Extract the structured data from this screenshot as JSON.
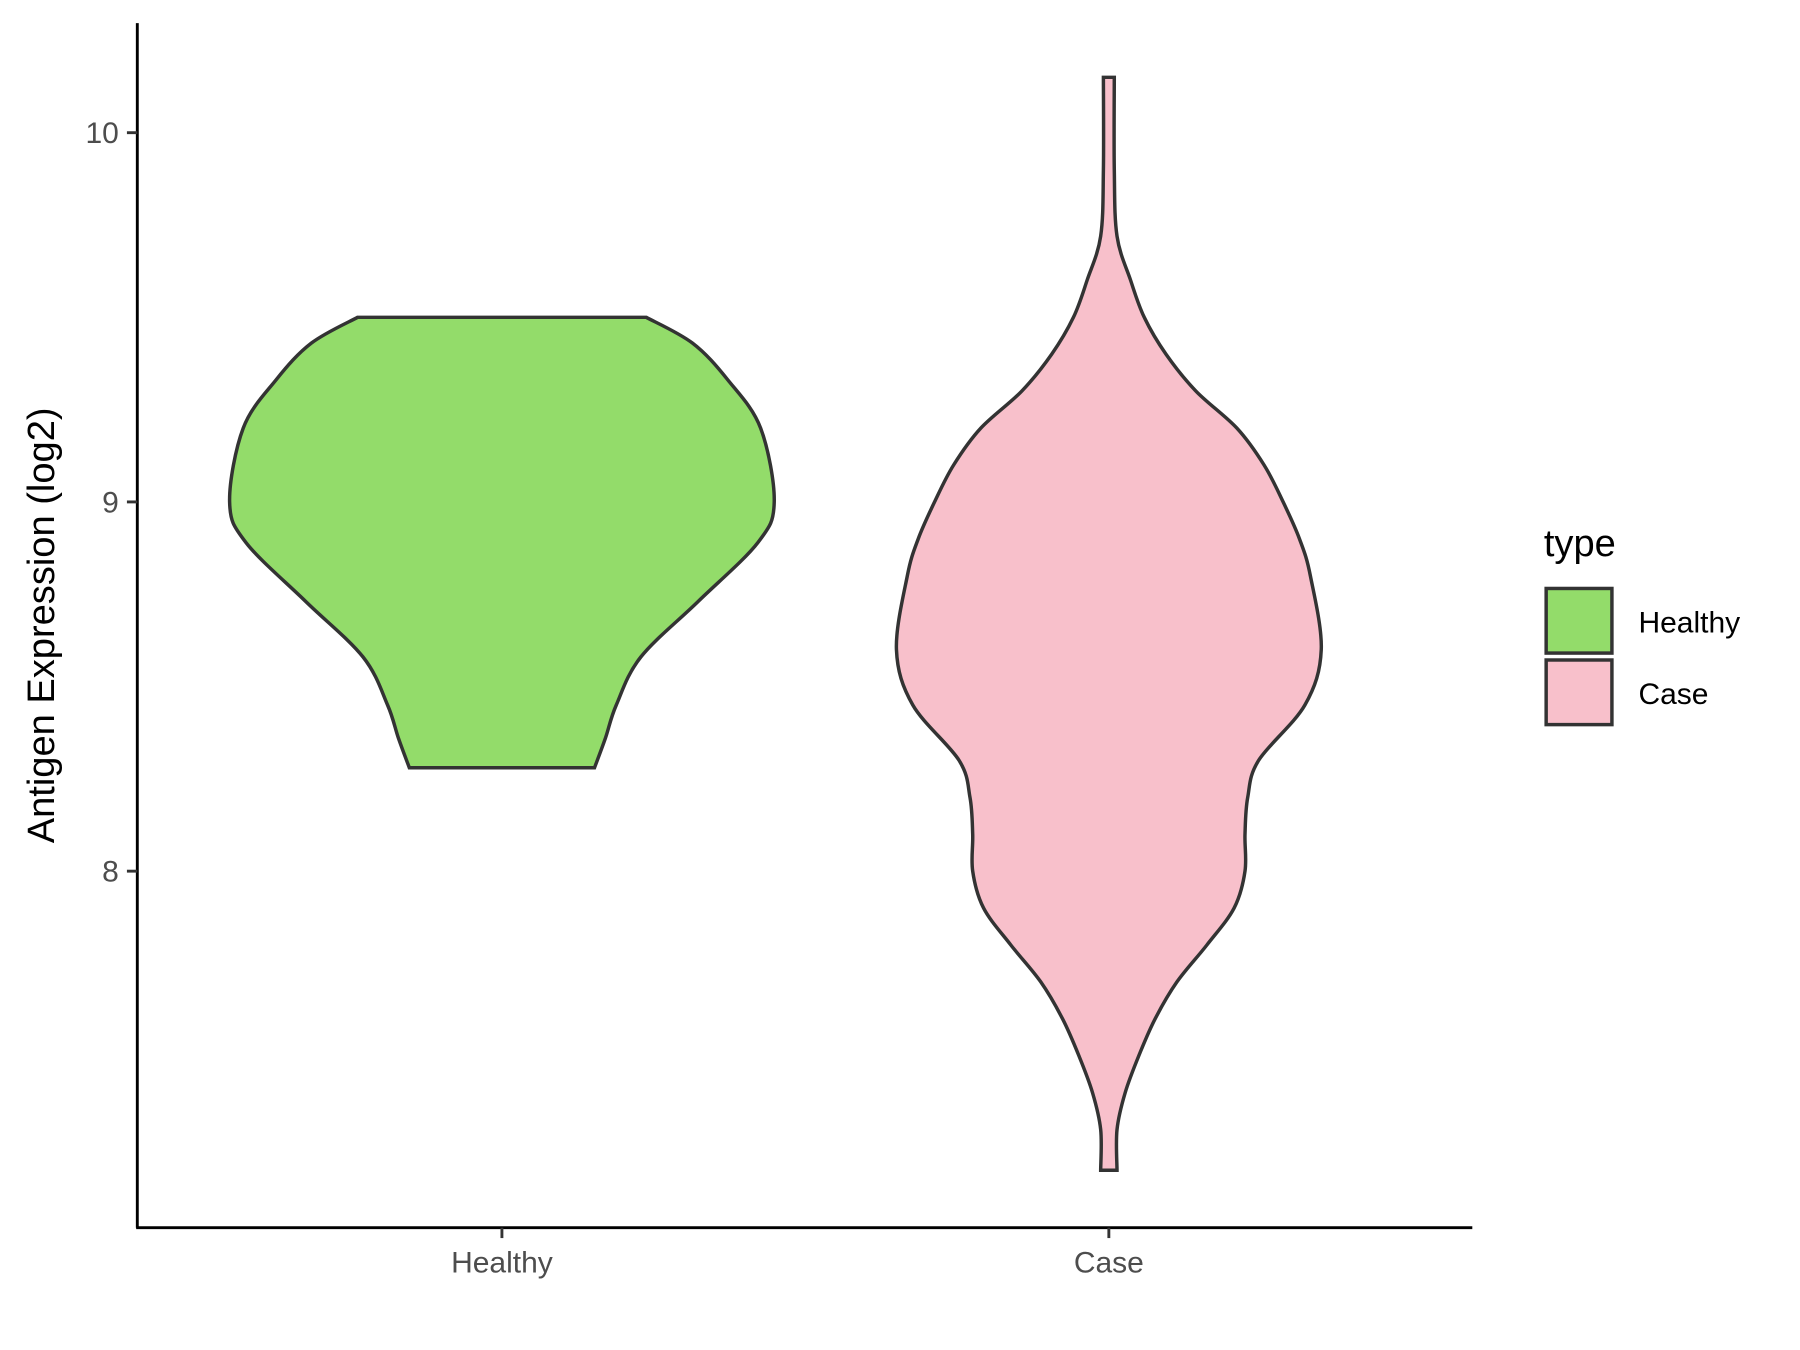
{
  "chart_data": {
    "type": "violin",
    "title": "",
    "xlabel": "",
    "ylabel": "Antigen Expression (log2)",
    "ylim": [
      7.05,
      10.29
    ],
    "yticks": [
      8,
      9,
      10
    ],
    "ytick_labels": [
      "8",
      "9",
      "10"
    ],
    "categories": [
      "Healthy",
      "Case"
    ],
    "grid": false,
    "legend": {
      "title": "type",
      "placement": "right",
      "entries": [
        "Healthy",
        "Case"
      ]
    },
    "series": [
      {
        "name": "Healthy",
        "color": "#93DC6A",
        "range": [
          8.28,
          9.5
        ],
        "density_profile": [
          [
            8.28,
            0.34
          ],
          [
            8.36,
            0.38
          ],
          [
            8.45,
            0.42
          ],
          [
            8.58,
            0.51
          ],
          [
            8.73,
            0.72
          ],
          [
            8.89,
            0.94
          ],
          [
            9.0,
            1.0
          ],
          [
            9.2,
            0.95
          ],
          [
            9.33,
            0.83
          ],
          [
            9.43,
            0.7
          ],
          [
            9.5,
            0.53
          ]
        ]
      },
      {
        "name": "Case",
        "color": "#F8C0CB",
        "range": [
          7.19,
          10.15
        ],
        "density_profile": [
          [
            7.19,
            0.03
          ],
          [
            7.3,
            0.03
          ],
          [
            7.4,
            0.06
          ],
          [
            7.5,
            0.11
          ],
          [
            7.6,
            0.17
          ],
          [
            7.7,
            0.25
          ],
          [
            7.8,
            0.36
          ],
          [
            7.9,
            0.46
          ],
          [
            8.0,
            0.5
          ],
          [
            8.1,
            0.5
          ],
          [
            8.2,
            0.51
          ],
          [
            8.3,
            0.55
          ],
          [
            8.45,
            0.72
          ],
          [
            8.6,
            0.78
          ],
          [
            8.8,
            0.74
          ],
          [
            8.9,
            0.7
          ],
          [
            9.0,
            0.64
          ],
          [
            9.1,
            0.57
          ],
          [
            9.2,
            0.47
          ],
          [
            9.3,
            0.32
          ],
          [
            9.4,
            0.21
          ],
          [
            9.5,
            0.13
          ],
          [
            9.6,
            0.08
          ],
          [
            9.72,
            0.03
          ],
          [
            9.9,
            0.02
          ],
          [
            10.15,
            0.02
          ]
        ]
      }
    ],
    "outline_color": "#333333"
  }
}
